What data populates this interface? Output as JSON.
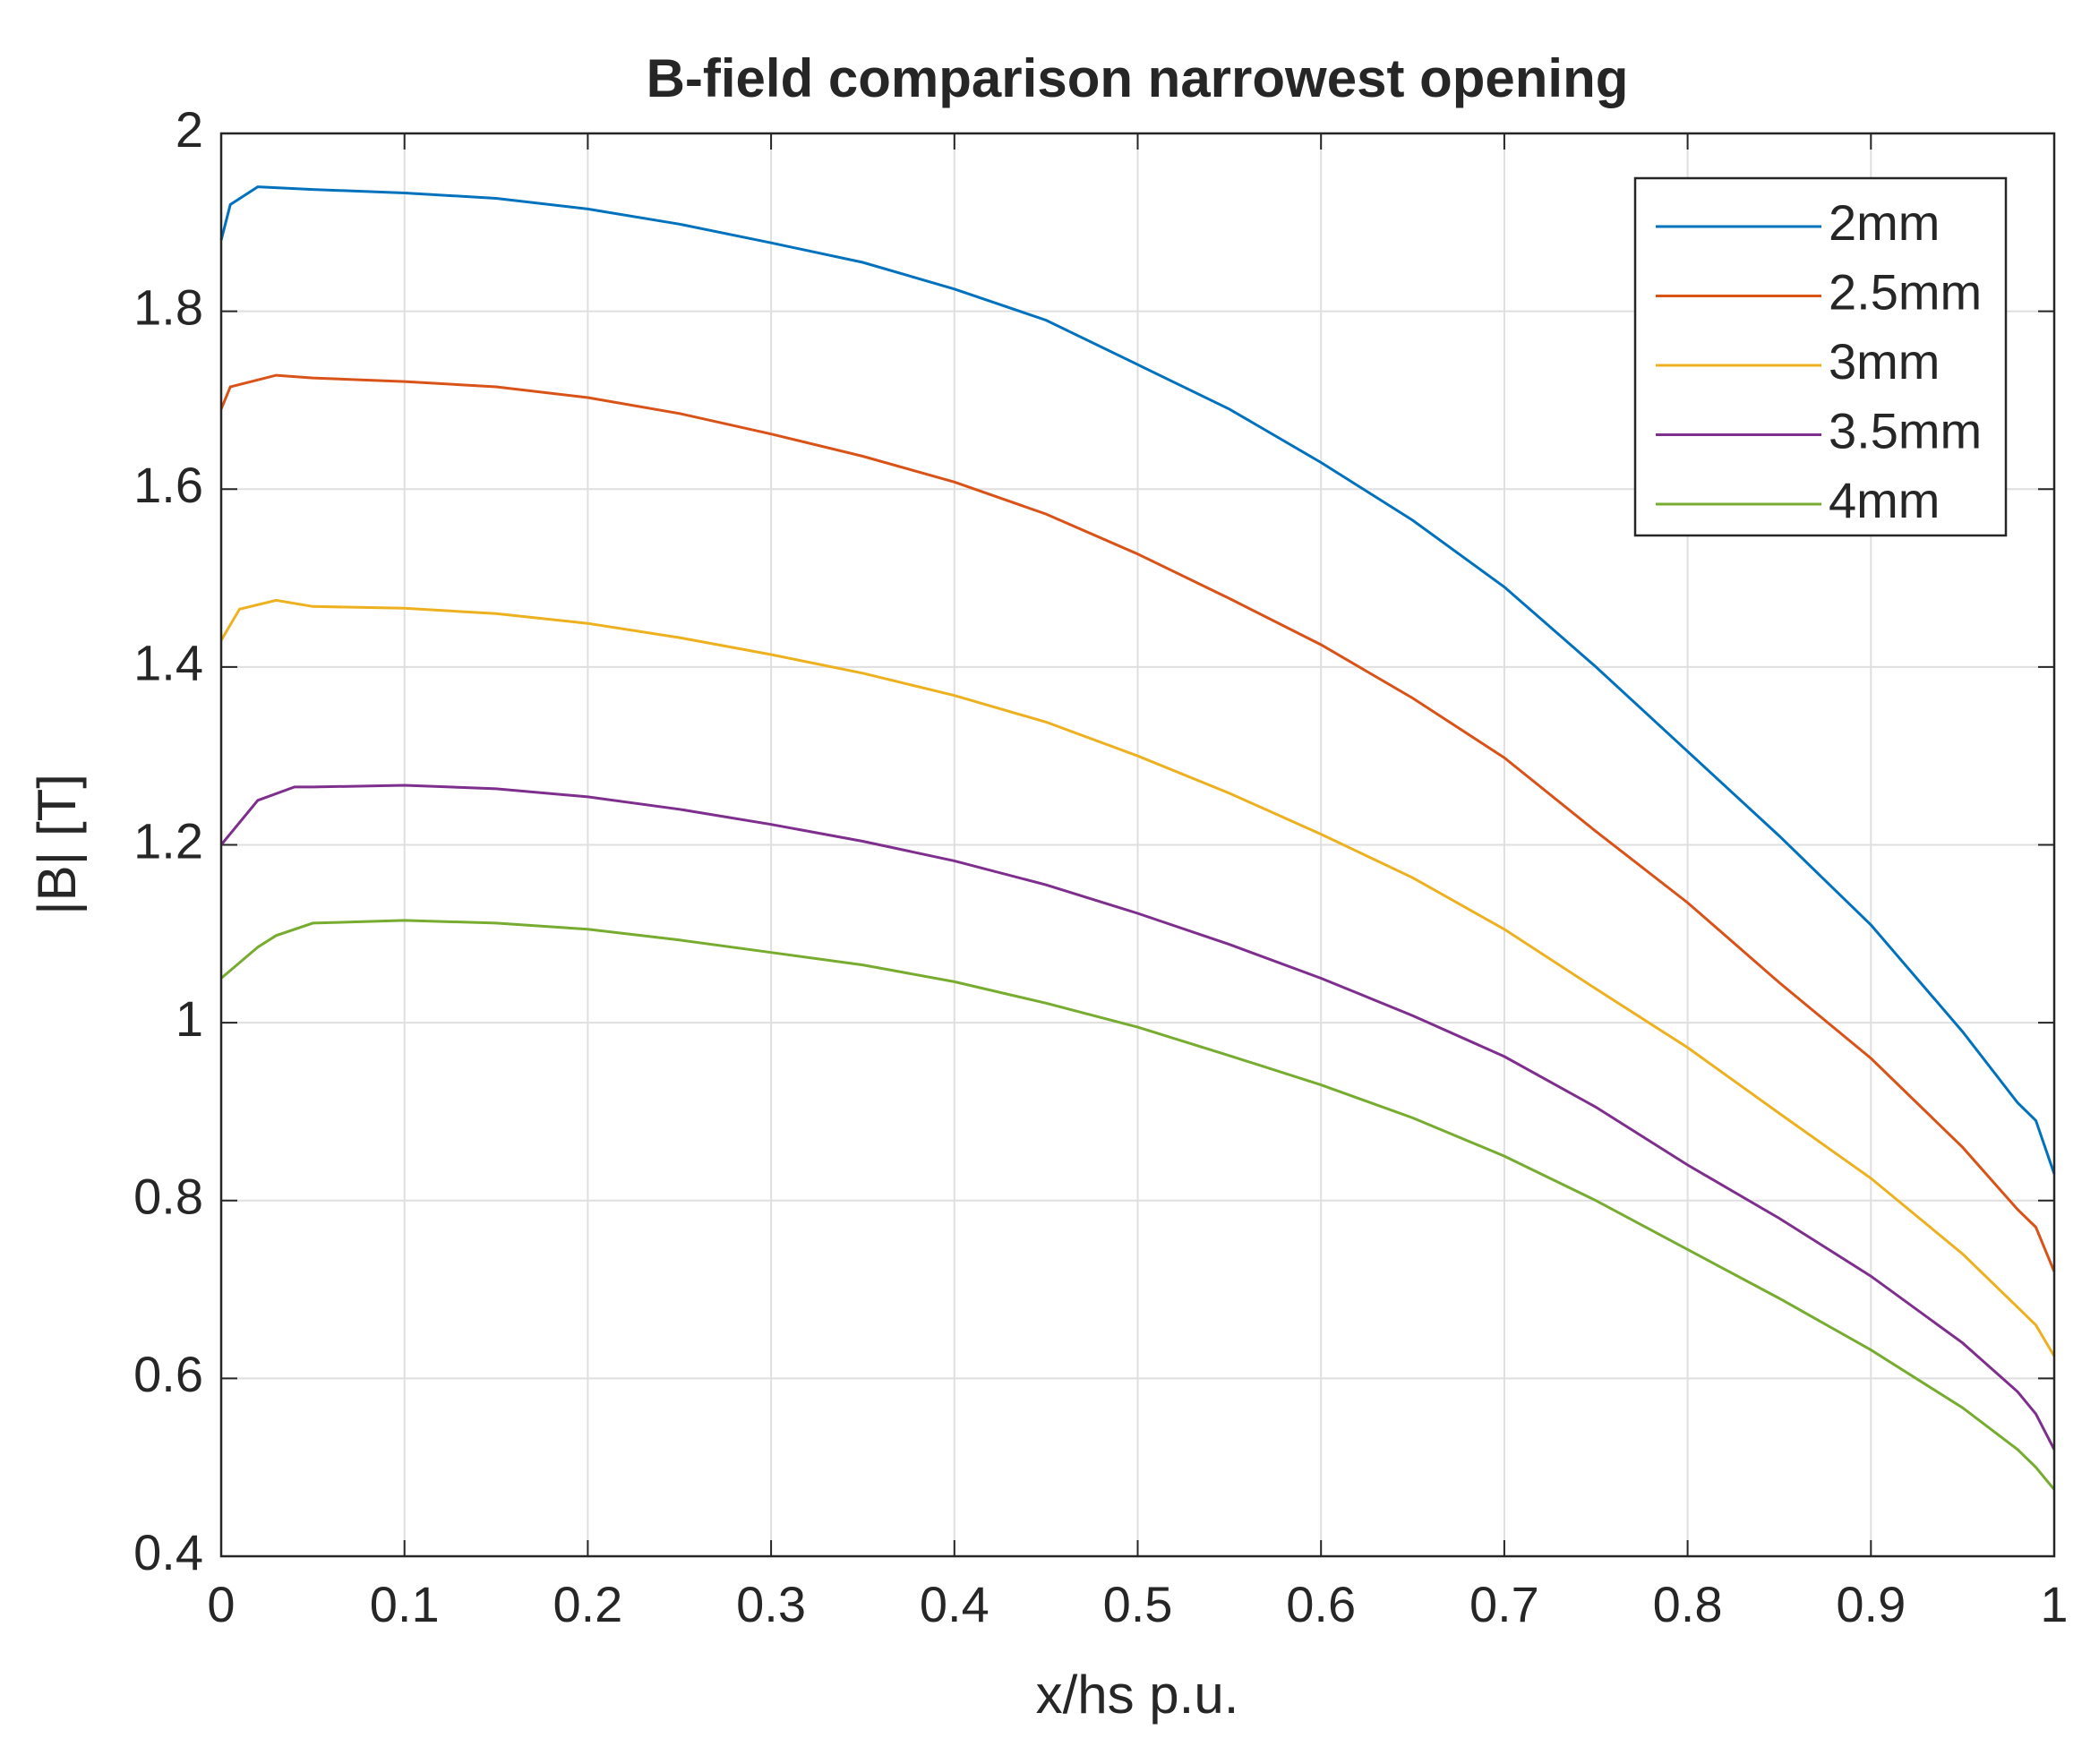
{
  "chart_data": {
    "type": "line",
    "title": "B-field comparison narrowest opening",
    "x_label": "x/hs p.u.",
    "y_label": "|B| [T]",
    "xlim": [
      0,
      1
    ],
    "ylim": [
      0.4,
      2
    ],
    "xticks": [
      0,
      0.1,
      0.2,
      0.3,
      0.4,
      0.5,
      0.6,
      0.7,
      0.8,
      0.9,
      1
    ],
    "yticks": [
      0.4,
      0.6,
      0.8,
      1,
      1.2,
      1.4,
      1.6,
      1.8,
      2
    ],
    "grid": true,
    "legend": "upper right",
    "series": [
      {
        "name": "2mm",
        "color": "#0072bd",
        "x": [
          0,
          0.005,
          0.02,
          0.05,
          0.1,
          0.15,
          0.2,
          0.25,
          0.3,
          0.35,
          0.4,
          0.45,
          0.5,
          0.55,
          0.6,
          0.65,
          0.7,
          0.75,
          0.8,
          0.85,
          0.9,
          0.95,
          0.98,
          0.99,
          1
        ],
        "values": [
          1.88,
          1.92,
          1.94,
          1.937,
          1.933,
          1.927,
          1.915,
          1.898,
          1.877,
          1.855,
          1.825,
          1.79,
          1.74,
          1.69,
          1.63,
          1.565,
          1.49,
          1.4,
          1.305,
          1.21,
          1.11,
          0.99,
          0.91,
          0.89,
          0.83
        ]
      },
      {
        "name": "2.5mm",
        "color": "#d95319",
        "x": [
          0,
          0.005,
          0.03,
          0.05,
          0.1,
          0.15,
          0.2,
          0.25,
          0.3,
          0.35,
          0.4,
          0.45,
          0.5,
          0.55,
          0.6,
          0.65,
          0.7,
          0.75,
          0.8,
          0.85,
          0.9,
          0.95,
          0.98,
          0.99,
          1
        ],
        "values": [
          1.69,
          1.715,
          1.728,
          1.725,
          1.721,
          1.715,
          1.703,
          1.685,
          1.662,
          1.637,
          1.608,
          1.572,
          1.527,
          1.477,
          1.425,
          1.365,
          1.298,
          1.215,
          1.135,
          1.045,
          0.96,
          0.86,
          0.79,
          0.77,
          0.72
        ]
      },
      {
        "name": "3mm",
        "color": "#edb120",
        "x": [
          0,
          0.01,
          0.03,
          0.05,
          0.1,
          0.15,
          0.2,
          0.25,
          0.3,
          0.35,
          0.4,
          0.45,
          0.5,
          0.55,
          0.6,
          0.65,
          0.7,
          0.75,
          0.8,
          0.85,
          0.9,
          0.95,
          0.98,
          0.99,
          1
        ],
        "values": [
          1.43,
          1.465,
          1.475,
          1.468,
          1.466,
          1.46,
          1.449,
          1.433,
          1.414,
          1.393,
          1.368,
          1.338,
          1.3,
          1.258,
          1.212,
          1.163,
          1.105,
          1.038,
          0.972,
          0.898,
          0.825,
          0.74,
          0.68,
          0.66,
          0.625
        ]
      },
      {
        "name": "3.5mm",
        "color": "#7e2f8e",
        "x": [
          0,
          0.02,
          0.04,
          0.05,
          0.1,
          0.15,
          0.2,
          0.25,
          0.3,
          0.35,
          0.4,
          0.45,
          0.5,
          0.55,
          0.6,
          0.65,
          0.7,
          0.75,
          0.8,
          0.85,
          0.9,
          0.95,
          0.98,
          0.99,
          1
        ],
        "values": [
          1.2,
          1.25,
          1.265,
          1.265,
          1.267,
          1.263,
          1.254,
          1.24,
          1.223,
          1.204,
          1.182,
          1.155,
          1.123,
          1.088,
          1.05,
          1.008,
          0.962,
          0.905,
          0.84,
          0.78,
          0.715,
          0.64,
          0.585,
          0.56,
          0.52
        ]
      },
      {
        "name": "4mm",
        "color": "#77ac30",
        "x": [
          0,
          0.02,
          0.03,
          0.05,
          0.1,
          0.15,
          0.2,
          0.25,
          0.3,
          0.35,
          0.4,
          0.45,
          0.5,
          0.55,
          0.6,
          0.65,
          0.7,
          0.75,
          0.8,
          0.85,
          0.9,
          0.95,
          0.98,
          0.99,
          1
        ],
        "values": [
          1.05,
          1.085,
          1.098,
          1.112,
          1.115,
          1.112,
          1.105,
          1.093,
          1.079,
          1.065,
          1.046,
          1.022,
          0.995,
          0.963,
          0.93,
          0.893,
          0.85,
          0.8,
          0.745,
          0.69,
          0.632,
          0.567,
          0.52,
          0.5,
          0.475
        ]
      }
    ]
  }
}
